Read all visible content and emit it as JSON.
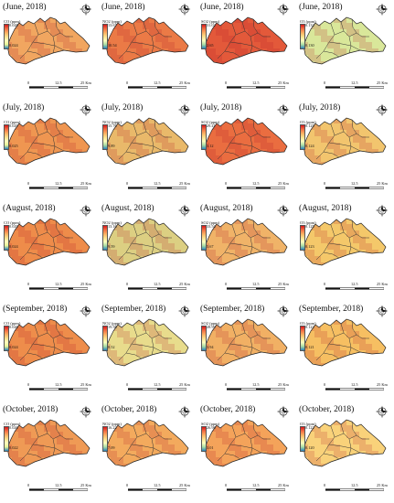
{
  "scale_labels": [
    "0",
    "12.5",
    "25 Km"
  ],
  "legend_colors": {
    "CO": [
      "#d7191c",
      "#f46d43",
      "#fdae61",
      "#fee08b",
      "#ffffbf",
      "#e6f598",
      "#2b83ba"
    ],
    "NO2": [
      "#d7191c",
      "#f46d43",
      "#fdae61",
      "#fee08b",
      "#ffffbf",
      "#abdda4",
      "#2b83ba"
    ],
    "SO2": [
      "#d7191c",
      "#f46d43",
      "#fdae61",
      "#fee08b",
      "#ffffbf",
      "#abdda4",
      "#2b83ba"
    ],
    "O3": [
      "#d7191c",
      "#f46d43",
      "#fdae61",
      "#fee08b",
      "#ffffbf",
      "#abdda4",
      "#2b83ba"
    ]
  },
  "rows": [
    {
      "month": "(June, 2018)",
      "panels": [
        {
          "id": "co-jun",
          "title": "(June, 2018)",
          "legend": "CO (ppm)",
          "max": "0.028",
          "min": "0.024",
          "palette": "CO",
          "fill": "#f1a660"
        },
        {
          "id": "no2-jun",
          "title": "(June, 2018)",
          "legend": "NO2 (ppm)",
          "max": "13.67",
          "min": "10.54",
          "palette": "NO2",
          "fill": "#eb7a46"
        },
        {
          "id": "so2-jun",
          "title": "(June, 2018)",
          "legend": "SO2 (ppm)",
          "max": "31.02",
          "min": "2.65",
          "palette": "SO2",
          "fill": "#e3593a"
        },
        {
          "id": "o3-jun",
          "title": "(June, 2018)",
          "legend": "O3 (ppm)",
          "max": "0.132",
          "min": "0.130",
          "palette": "O3",
          "fill": "#d9e79a"
        }
      ]
    },
    {
      "month": "(July, 2018)",
      "panels": [
        {
          "id": "co-jul",
          "title": "(July, 2018)",
          "legend": "CO (ppm)",
          "max": "0.029",
          "min": "0.025",
          "palette": "CO",
          "fill": "#ef9651"
        },
        {
          "id": "no2-jul",
          "title": "(July, 2018)",
          "legend": "NO2 (ppm)",
          "max": "15.76",
          "min": "9.89",
          "palette": "NO2",
          "fill": "#e9b96a"
        },
        {
          "id": "so2-jul",
          "title": "(July, 2018)",
          "legend": "SO2 (ppm)",
          "max": "29.41",
          "min": "3.12",
          "palette": "SO2",
          "fill": "#ea6d40"
        },
        {
          "id": "o3-jul",
          "title": "(July, 2018)",
          "legend": "O3 (ppm)",
          "max": "0.125",
          "min": "0.124",
          "palette": "O3",
          "fill": "#f2c56e"
        }
      ]
    },
    {
      "month": "(August, 2018)",
      "panels": [
        {
          "id": "co-aug",
          "title": "(August, 2018)",
          "legend": "CO (ppm)",
          "max": "0.029",
          "min": "0.024",
          "palette": "CO",
          "fill": "#ee8c4a"
        },
        {
          "id": "no2-aug",
          "title": "(August, 2018)",
          "legend": "NO2 (ppm)",
          "max": "13.16",
          "min": "9.59",
          "palette": "NO2",
          "fill": "#dccf82"
        },
        {
          "id": "so2-aug",
          "title": "(August, 2018)",
          "legend": "SO2 (ppm)",
          "max": "33.54",
          "min": "5.67",
          "palette": "SO2",
          "fill": "#f0b368"
        },
        {
          "id": "o3-aug",
          "title": "(August, 2018)",
          "legend": "O3 (ppm)",
          "max": "0.125",
          "min": "0.123",
          "palette": "O3",
          "fill": "#f4c86a"
        }
      ]
    },
    {
      "month": "(September, 2018)",
      "panels": [
        {
          "id": "co-sep",
          "title": "(September, 2018)",
          "legend": "CO (ppm)",
          "max": "0.026",
          "min": "0.024",
          "palette": "CO",
          "fill": "#ee8d4b"
        },
        {
          "id": "no2-sep",
          "title": "(September, 2018)",
          "legend": "NO2 (ppm)",
          "max": "19.58",
          "min": "8.52",
          "palette": "NO2",
          "fill": "#e8dc8c"
        },
        {
          "id": "so2-sep",
          "title": "(September, 2018)",
          "legend": "SO2 (ppm)",
          "max": "28.99",
          "min": "3.94",
          "palette": "SO2",
          "fill": "#f1b064"
        },
        {
          "id": "o3-sep",
          "title": "(September, 2018)",
          "legend": "O3 (ppm)",
          "max": "0.122",
          "min": "0.121",
          "palette": "O3",
          "fill": "#f6bf62"
        }
      ]
    },
    {
      "month": "(October, 2018)",
      "panels": [
        {
          "id": "co-oct",
          "title": "(October, 2018)",
          "legend": "CO (ppm)",
          "max": "0.026",
          "min": "0.022",
          "palette": "CO",
          "fill": "#ef9a55"
        },
        {
          "id": "no2-oct",
          "title": "(October, 2018)",
          "legend": "NO2 (ppm)",
          "max": "16.22",
          "min": "7.09",
          "palette": "NO2",
          "fill": "#f3aa5d"
        },
        {
          "id": "so2-oct",
          "title": "(October, 2018)",
          "legend": "SO2 (ppm)",
          "max": "26.98",
          "min": "3.01",
          "palette": "SO2",
          "fill": "#f4a35a"
        },
        {
          "id": "o3-oct",
          "title": "(October, 2018)",
          "legend": "O3 (ppm)",
          "max": "0.122",
          "min": "0.120",
          "palette": "O3",
          "fill": "#f9d27a"
        }
      ]
    }
  ]
}
